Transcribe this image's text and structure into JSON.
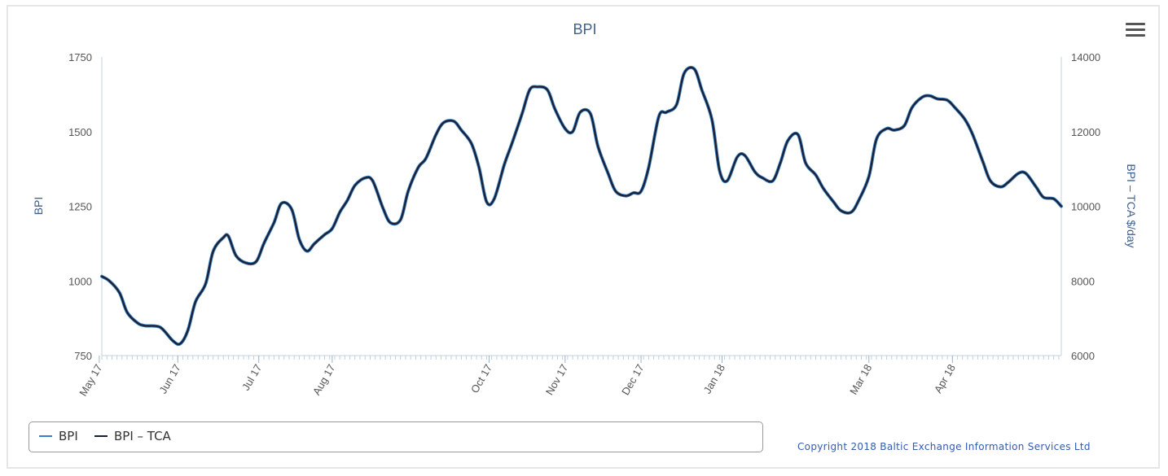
{
  "chart_data": {
    "type": "line",
    "title": "BPI",
    "ylabel_left": "BPI",
    "ylabel_right": "BPI – TCA $/day",
    "ylim_left": [
      750,
      1750
    ],
    "ylim_right": [
      6000,
      14000
    ],
    "yticks_left": [
      "750",
      "1000",
      "1250",
      "1500",
      "1750"
    ],
    "yticks_right": [
      "6000",
      "8000",
      "10000",
      "12000",
      "14000"
    ],
    "xlim": [
      "2017-05-02",
      "2018-05-16"
    ],
    "xticks": [
      {
        "date": "2017-05-01",
        "label": "May 17"
      },
      {
        "date": "2017-06-01",
        "label": "Jun 17"
      },
      {
        "date": "2017-07-03",
        "label": "Jul 17"
      },
      {
        "date": "2017-08-01",
        "label": "Aug 17"
      },
      {
        "date": "2017-10-02",
        "label": "Oct 17"
      },
      {
        "date": "2017-11-01",
        "label": "Nov 17"
      },
      {
        "date": "2017-12-01",
        "label": "Dec 17"
      },
      {
        "date": "2018-01-02",
        "label": "Jan 18"
      },
      {
        "date": "2018-03-01",
        "label": "Mar 18"
      },
      {
        "date": "2018-04-03",
        "label": "Apr 18"
      }
    ],
    "series": [
      {
        "name": "BPI",
        "axis": "left",
        "color": "#3a7fc2",
        "x": [
          "2017-05-02",
          "2017-05-05",
          "2017-05-09",
          "2017-05-12",
          "2017-05-16",
          "2017-05-19",
          "2017-05-25",
          "2017-05-30",
          "2017-06-02",
          "2017-06-05",
          "2017-06-08",
          "2017-06-12",
          "2017-06-15",
          "2017-06-19",
          "2017-06-21",
          "2017-06-24",
          "2017-06-28",
          "2017-07-02",
          "2017-07-05",
          "2017-07-09",
          "2017-07-12",
          "2017-07-16",
          "2017-07-19",
          "2017-07-22",
          "2017-07-25",
          "2017-07-29",
          "2017-08-01",
          "2017-08-04",
          "2017-08-07",
          "2017-08-10",
          "2017-08-14",
          "2017-08-17",
          "2017-08-21",
          "2017-08-24",
          "2017-08-28",
          "2017-08-31",
          "2017-09-04",
          "2017-09-07",
          "2017-09-11",
          "2017-09-14",
          "2017-09-18",
          "2017-09-21",
          "2017-09-25",
          "2017-09-28",
          "2017-10-01",
          "2017-10-04",
          "2017-10-08",
          "2017-10-11",
          "2017-10-15",
          "2017-10-18",
          "2017-10-21",
          "2017-10-25",
          "2017-10-28",
          "2017-11-01",
          "2017-11-04",
          "2017-11-07",
          "2017-11-11",
          "2017-11-14",
          "2017-11-18",
          "2017-11-21",
          "2017-11-25",
          "2017-11-28",
          "2017-12-01",
          "2017-12-04",
          "2017-12-08",
          "2017-12-11",
          "2017-12-15",
          "2017-12-18",
          "2017-12-22",
          "2017-12-25",
          "2017-12-29",
          "2018-01-01",
          "2018-01-04",
          "2018-01-08",
          "2018-01-11",
          "2018-01-15",
          "2018-01-18",
          "2018-01-22",
          "2018-01-25",
          "2018-01-28",
          "2018-02-01",
          "2018-02-04",
          "2018-02-08",
          "2018-02-11",
          "2018-02-15",
          "2018-02-18",
          "2018-02-22",
          "2018-02-25",
          "2018-03-01",
          "2018-03-04",
          "2018-03-08",
          "2018-03-11",
          "2018-03-15",
          "2018-03-18",
          "2018-03-22",
          "2018-03-25",
          "2018-03-28",
          "2018-04-01",
          "2018-04-04",
          "2018-04-08",
          "2018-04-11",
          "2018-04-15",
          "2018-04-18",
          "2018-04-22",
          "2018-04-25",
          "2018-04-29",
          "2018-05-02",
          "2018-05-06",
          "2018-05-09",
          "2018-05-13",
          "2018-05-16"
        ],
        "values": [
          1015,
          1000,
          960,
          895,
          860,
          850,
          845,
          800,
          790,
          835,
          930,
          990,
          1100,
          1145,
          1150,
          1085,
          1060,
          1065,
          1125,
          1195,
          1260,
          1240,
          1140,
          1100,
          1125,
          1155,
          1175,
          1230,
          1270,
          1320,
          1345,
          1335,
          1245,
          1195,
          1205,
          1300,
          1380,
          1410,
          1490,
          1530,
          1535,
          1505,
          1460,
          1380,
          1265,
          1275,
          1390,
          1460,
          1560,
          1640,
          1650,
          1640,
          1575,
          1510,
          1500,
          1565,
          1560,
          1450,
          1360,
          1300,
          1285,
          1295,
          1300,
          1380,
          1550,
          1565,
          1590,
          1695,
          1710,
          1640,
          1540,
          1370,
          1335,
          1415,
          1420,
          1365,
          1345,
          1335,
          1395,
          1470,
          1490,
          1395,
          1355,
          1310,
          1265,
          1235,
          1230,
          1270,
          1350,
          1475,
          1510,
          1505,
          1520,
          1580,
          1615,
          1620,
          1610,
          1605,
          1580,
          1540,
          1490,
          1400,
          1335,
          1315,
          1330,
          1360,
          1360,
          1315,
          1280,
          1275,
          1250
        ]
      },
      {
        "name": "BPI – TCA",
        "axis": "right",
        "color": "#1b1f33",
        "x": [
          "2017-05-02",
          "2017-05-05",
          "2017-05-09",
          "2017-05-12",
          "2017-05-16",
          "2017-05-19",
          "2017-05-25",
          "2017-05-30",
          "2017-06-02",
          "2017-06-05",
          "2017-06-08",
          "2017-06-12",
          "2017-06-15",
          "2017-06-19",
          "2017-06-21",
          "2017-06-24",
          "2017-06-28",
          "2017-07-02",
          "2017-07-05",
          "2017-07-09",
          "2017-07-12",
          "2017-07-16",
          "2017-07-19",
          "2017-07-22",
          "2017-07-25",
          "2017-07-29",
          "2017-08-01",
          "2017-08-04",
          "2017-08-07",
          "2017-08-10",
          "2017-08-14",
          "2017-08-17",
          "2017-08-21",
          "2017-08-24",
          "2017-08-28",
          "2017-08-31",
          "2017-09-04",
          "2017-09-07",
          "2017-09-11",
          "2017-09-14",
          "2017-09-18",
          "2017-09-21",
          "2017-09-25",
          "2017-09-28",
          "2017-10-01",
          "2017-10-04",
          "2017-10-08",
          "2017-10-11",
          "2017-10-15",
          "2017-10-18",
          "2017-10-21",
          "2017-10-25",
          "2017-10-28",
          "2017-11-01",
          "2017-11-04",
          "2017-11-07",
          "2017-11-11",
          "2017-11-14",
          "2017-11-18",
          "2017-11-21",
          "2017-11-25",
          "2017-11-28",
          "2017-12-01",
          "2017-12-04",
          "2017-12-08",
          "2017-12-11",
          "2017-12-15",
          "2017-12-18",
          "2017-12-22",
          "2017-12-25",
          "2017-12-29",
          "2018-01-01",
          "2018-01-04",
          "2018-01-08",
          "2018-01-11",
          "2018-01-15",
          "2018-01-18",
          "2018-01-22",
          "2018-01-25",
          "2018-01-28",
          "2018-02-01",
          "2018-02-04",
          "2018-02-08",
          "2018-02-11",
          "2018-02-15",
          "2018-02-18",
          "2018-02-22",
          "2018-02-25",
          "2018-03-01",
          "2018-03-04",
          "2018-03-08",
          "2018-03-11",
          "2018-03-15",
          "2018-03-18",
          "2018-03-22",
          "2018-03-25",
          "2018-03-28",
          "2018-04-01",
          "2018-04-04",
          "2018-04-08",
          "2018-04-11",
          "2018-04-15",
          "2018-04-18",
          "2018-04-22",
          "2018-04-25",
          "2018-04-29",
          "2018-05-02",
          "2018-05-06",
          "2018-05-09",
          "2018-05-13",
          "2018-05-16"
        ],
        "values": [
          8120,
          8000,
          7680,
          7160,
          6880,
          6800,
          6760,
          6400,
          6320,
          6680,
          7440,
          7920,
          8800,
          9160,
          9200,
          8680,
          8480,
          8520,
          9000,
          9560,
          10080,
          9920,
          9120,
          8800,
          9000,
          9240,
          9400,
          9840,
          10160,
          10560,
          10760,
          10680,
          9960,
          9560,
          9640,
          10400,
          11040,
          11280,
          11920,
          12240,
          12280,
          12040,
          11680,
          11040,
          10120,
          10200,
          11120,
          11680,
          12480,
          13120,
          13200,
          13120,
          12600,
          12080,
          12000,
          12520,
          12480,
          11600,
          10880,
          10400,
          10280,
          10360,
          10400,
          11040,
          12400,
          12520,
          12720,
          13560,
          13680,
          13120,
          12320,
          10960,
          10680,
          11320,
          11360,
          10920,
          10760,
          10680,
          11160,
          11760,
          11920,
          11160,
          10840,
          10480,
          10120,
          9880,
          9840,
          10160,
          10800,
          11800,
          12080,
          12040,
          12160,
          12640,
          12920,
          12960,
          12880,
          12840,
          12640,
          12320,
          11920,
          11200,
          10680,
          10520,
          10640,
          10880,
          10880,
          10520,
          10240,
          10200,
          10000
        ]
      }
    ],
    "legend": {
      "position": "bottom-left",
      "entries": [
        "BPI",
        "BPI – TCA"
      ]
    },
    "copyright": "Copyright 2018 Baltic Exchange Information Services Ltd",
    "grid": false
  }
}
